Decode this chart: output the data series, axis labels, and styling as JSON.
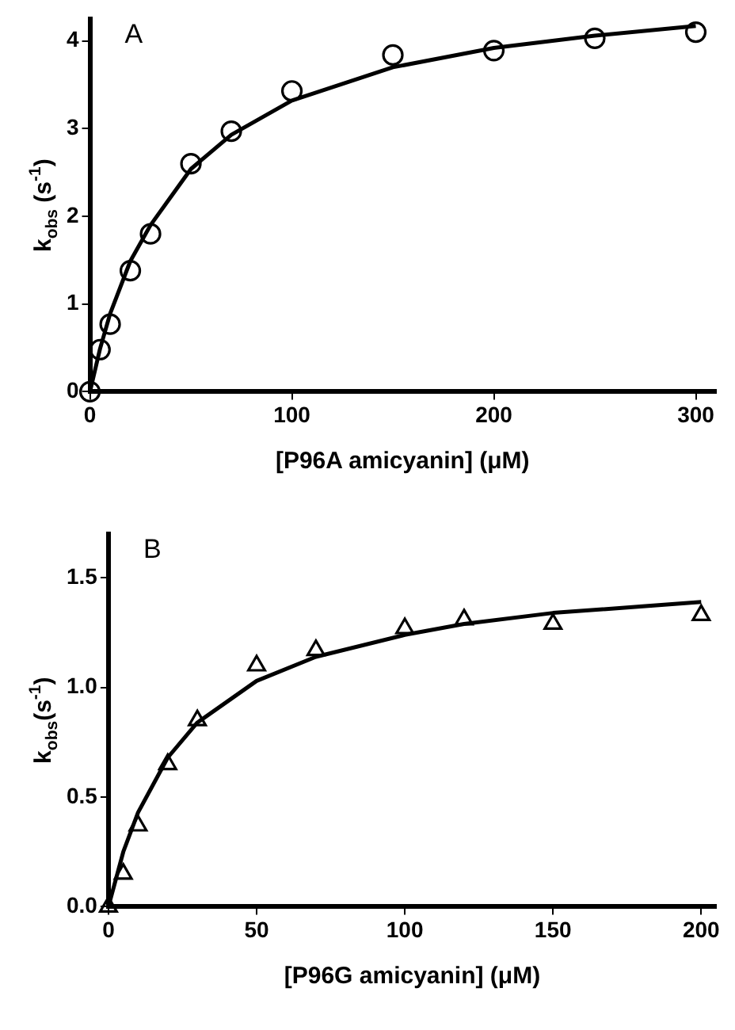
{
  "chart_data": [
    {
      "type": "scatter",
      "xlabel": "[P96A amicyanin] (μM)",
      "ylabel": "k$_{obs}$ (s$^{-1}$)",
      "annotations": [
        "A"
      ],
      "xlim": [
        0,
        310
      ],
      "xticks": [
        0,
        100,
        200,
        300
      ],
      "ylim": [
        0,
        4.25
      ],
      "yticks": [
        0,
        1,
        2,
        3,
        4
      ],
      "grid": false,
      "legend": false,
      "series": [
        {
          "marker": "circle",
          "color": "#000000",
          "x": [
            0,
            5,
            10,
            20,
            30,
            50,
            70,
            100,
            150,
            200,
            250,
            300
          ],
          "values": [
            0,
            0.48,
            0.77,
            1.38,
            1.8,
            2.6,
            2.97,
            3.43,
            3.84,
            3.89,
            4.03,
            4.1
          ]
        },
        {
          "type": "line",
          "marker": "none",
          "line_style": "solid",
          "color": "#000000",
          "x": [
            0,
            5,
            10,
            20,
            30,
            50,
            70,
            100,
            150,
            200,
            250,
            300
          ],
          "values": [
            0,
            0.49,
            0.89,
            1.49,
            1.9,
            2.54,
            2.93,
            3.32,
            3.7,
            3.92,
            4.06,
            4.17
          ]
        }
      ]
    },
    {
      "type": "scatter",
      "xlabel": "[P96G amicyanin] (μM)",
      "ylabel": "k$_{obs}$(s$^{-1}$)",
      "annotations": [
        "B"
      ],
      "xlim": [
        0,
        205
      ],
      "xticks": [
        0,
        50,
        100,
        150,
        200
      ],
      "ylim": [
        0,
        1.7
      ],
      "yticks": [
        {
          "value": 0,
          "label": "0.0"
        },
        0.5,
        {
          "value": 1,
          "label": "1.0"
        },
        1.5
      ],
      "grid": false,
      "legend": false,
      "series": [
        {
          "marker": "triangle",
          "color": "#000000",
          "x": [
            0,
            5,
            10,
            20,
            30,
            50,
            70,
            100,
            120,
            150,
            200
          ],
          "values": [
            0,
            0.15,
            0.37,
            0.65,
            0.85,
            1.1,
            1.17,
            1.27,
            1.31,
            1.29,
            1.33
          ]
        },
        {
          "type": "line",
          "marker": "none",
          "line_style": "solid",
          "color": "#000000",
          "x": [
            0,
            5,
            10,
            20,
            30,
            50,
            70,
            100,
            120,
            150,
            200
          ],
          "values": [
            0,
            0.25,
            0.43,
            0.68,
            0.84,
            1.03,
            1.14,
            1.24,
            1.29,
            1.34,
            1.39
          ]
        }
      ]
    }
  ]
}
